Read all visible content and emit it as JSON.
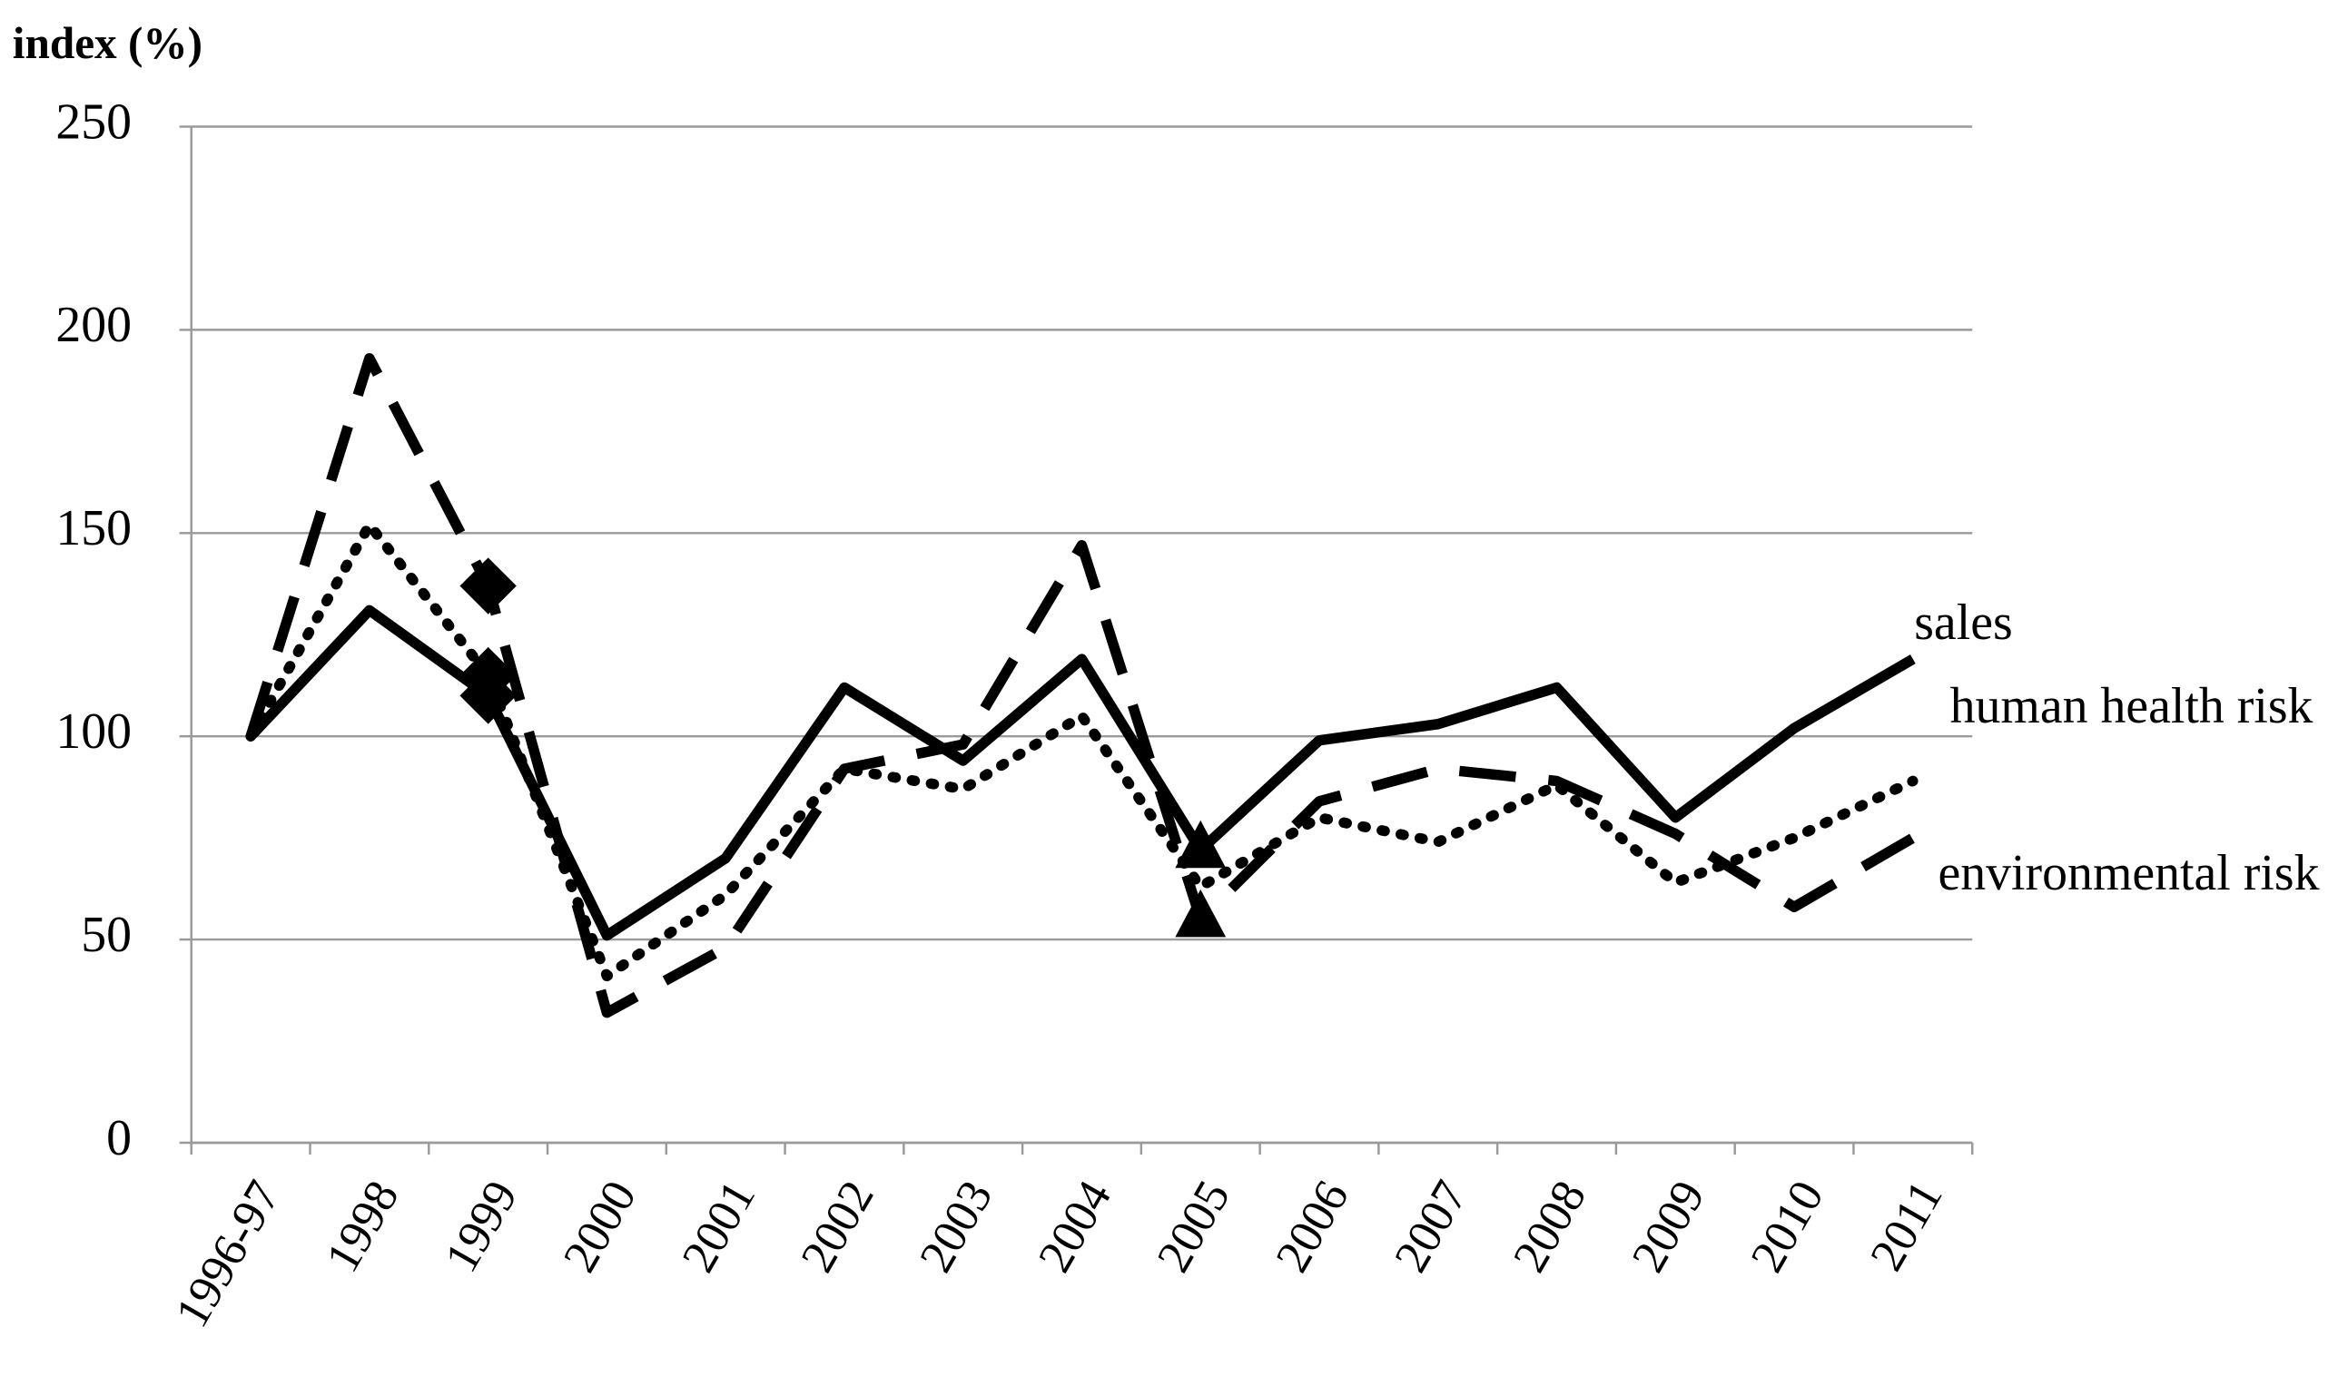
{
  "chart_data": {
    "type": "line",
    "title": "index (%)",
    "categories": [
      "1996-97",
      "1998",
      "1999",
      "2000",
      "2001",
      "2002",
      "2003",
      "2004",
      "2005",
      "2006",
      "2007",
      "2008",
      "2009",
      "2010",
      "2011"
    ],
    "series": [
      {
        "name": "sales",
        "color": "#000000",
        "dash": "solid",
        "markers": {
          "2": "diamond",
          "8": "triangle"
        },
        "values": [
          100,
          131,
          110,
          51,
          70,
          112,
          94,
          119,
          72,
          99,
          103,
          112,
          80,
          102,
          119
        ]
      },
      {
        "name": "human health risk",
        "color": "#000000",
        "dash": "dotted",
        "markers": {
          "2": "diamond"
        },
        "values": [
          100,
          152,
          115,
          41,
          61,
          92,
          87,
          105,
          63,
          80,
          74,
          88,
          64,
          75,
          89
        ]
      },
      {
        "name": "environmental risk",
        "color": "#000000",
        "dash": "dashed",
        "markers": {
          "2": "diamond",
          "8": "triangle"
        },
        "values": [
          100,
          193,
          137,
          32,
          48,
          92,
          98,
          147,
          55,
          84,
          92,
          89,
          76,
          58,
          75
        ]
      }
    ],
    "ylim": [
      0,
      250
    ],
    "yticks": [
      0,
      50,
      100,
      150,
      200,
      250
    ],
    "grid": true
  }
}
